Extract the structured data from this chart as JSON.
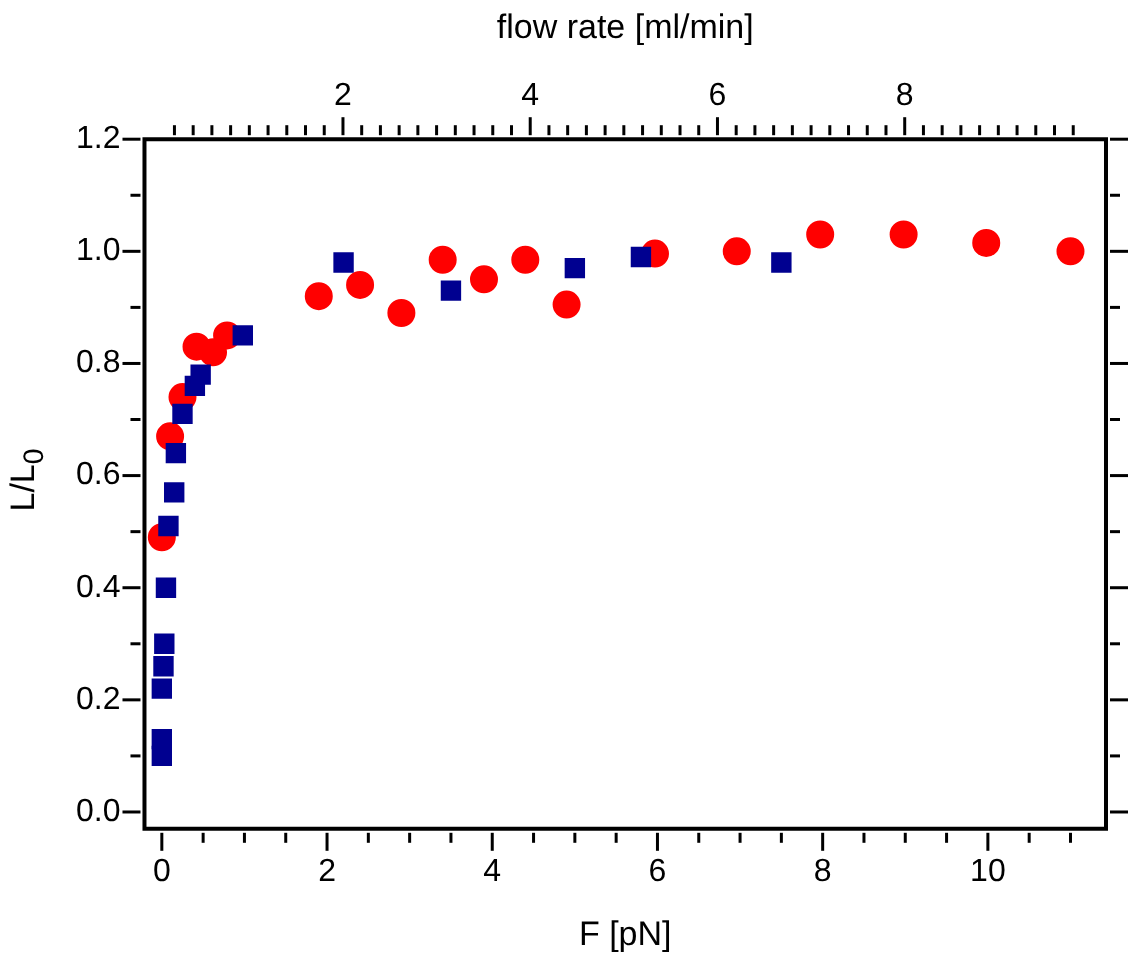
{
  "chart_data": {
    "type": "scatter",
    "xlabel": "F [pN]",
    "ylabel": "L/L$_{0}$",
    "x2label": "flow rate [ml/min]",
    "xlim": [
      -0.21,
      11.43
    ],
    "ylim": [
      -0.03,
      1.2
    ],
    "x2lim": [
      -0.12,
      10.15
    ],
    "xticks": [
      0,
      {
        "value": 0.5,
        "label": null
      },
      {
        "value": 1,
        "label": null
      },
      {
        "value": 1.5,
        "label": null
      },
      2,
      {
        "value": 2.5,
        "label": null
      },
      {
        "value": 3,
        "label": null
      },
      {
        "value": 3.5,
        "label": null
      },
      4,
      {
        "value": 4.5,
        "label": null
      },
      {
        "value": 5,
        "label": null
      },
      {
        "value": 5.5,
        "label": null
      },
      6,
      {
        "value": 6.5,
        "label": null
      },
      {
        "value": 7,
        "label": null
      },
      {
        "value": 7.5,
        "label": null
      },
      8,
      {
        "value": 8.5,
        "label": null
      },
      {
        "value": 9,
        "label": null
      },
      {
        "value": 9.5,
        "label": null
      },
      10,
      {
        "value": 10.5,
        "label": null
      },
      {
        "value": 11,
        "label": null
      }
    ],
    "yticks": [
      {
        "value": 0,
        "label": "0.0"
      },
      {
        "value": 0.1,
        "label": null
      },
      {
        "value": 0.2,
        "label": "0.2"
      },
      {
        "value": 0.3,
        "label": null
      },
      {
        "value": 0.4,
        "label": "0.4"
      },
      {
        "value": 0.5,
        "label": null
      },
      {
        "value": 0.6,
        "label": "0.6"
      },
      {
        "value": 0.7,
        "label": null
      },
      {
        "value": 0.8,
        "label": "0.8"
      },
      {
        "value": 0.9,
        "label": null
      },
      {
        "value": 1,
        "label": "1.0"
      },
      {
        "value": 1.1,
        "label": null
      },
      {
        "value": 1.2,
        "label": "1.2"
      }
    ],
    "x2ticks": [
      {
        "value": 0.2,
        "label": null
      },
      {
        "value": 0.4,
        "label": null
      },
      {
        "value": 0.6,
        "label": null
      },
      {
        "value": 0.8,
        "label": null
      },
      {
        "value": 1,
        "label": null
      },
      {
        "value": 1.2,
        "label": null
      },
      {
        "value": 1.4,
        "label": null
      },
      {
        "value": 1.6,
        "label": null
      },
      {
        "value": 1.8,
        "label": null
      },
      2,
      {
        "value": 2.2,
        "label": null
      },
      {
        "value": 2.4,
        "label": null
      },
      {
        "value": 2.6,
        "label": null
      },
      {
        "value": 2.8,
        "label": null
      },
      {
        "value": 3,
        "label": null
      },
      {
        "value": 3.2,
        "label": null
      },
      {
        "value": 3.4,
        "label": null
      },
      {
        "value": 3.6,
        "label": null
      },
      {
        "value": 3.8,
        "label": null
      },
      4,
      {
        "value": 4.2,
        "label": null
      },
      {
        "value": 4.4,
        "label": null
      },
      {
        "value": 4.6,
        "label": null
      },
      {
        "value": 4.8,
        "label": null
      },
      {
        "value": 5,
        "label": null
      },
      {
        "value": 5.2,
        "label": null
      },
      {
        "value": 5.4,
        "label": null
      },
      {
        "value": 5.6,
        "label": null
      },
      {
        "value": 5.8,
        "label": null
      },
      6,
      {
        "value": 6.2,
        "label": null
      },
      {
        "value": 6.4,
        "label": null
      },
      {
        "value": 6.6,
        "label": null
      },
      {
        "value": 6.8,
        "label": null
      },
      {
        "value": 7,
        "label": null
      },
      {
        "value": 7.2,
        "label": null
      },
      {
        "value": 7.4,
        "label": null
      },
      {
        "value": 7.6,
        "label": null
      },
      {
        "value": 7.8,
        "label": null
      },
      8,
      {
        "value": 8.2,
        "label": null
      },
      {
        "value": 8.4,
        "label": null
      },
      {
        "value": 8.6,
        "label": null
      },
      {
        "value": 8.8,
        "label": null
      },
      {
        "value": 9,
        "label": null
      },
      {
        "value": 9.2,
        "label": null
      },
      {
        "value": 9.4,
        "label": null
      },
      {
        "value": 9.6,
        "label": null
      },
      {
        "value": 9.8,
        "label": null
      }
    ],
    "grid": false,
    "legend": false,
    "series": [
      {
        "color": "#000090",
        "marker": "square",
        "x": [
          0.0,
          0.0,
          0.0,
          0.02,
          0.03,
          0.05,
          0.08,
          0.15,
          0.17,
          0.25,
          0.4,
          0.47,
          0.98,
          2.2,
          3.5,
          5.0,
          5.8,
          7.5
        ],
        "values": [
          0.1,
          0.13,
          0.22,
          0.26,
          0.3,
          0.4,
          0.51,
          0.57,
          0.64,
          0.71,
          0.76,
          0.78,
          0.85,
          0.98,
          0.93,
          0.97,
          0.99,
          0.98
        ]
      },
      {
        "color": "#ff0000",
        "marker": "circle",
        "x": [
          0.0,
          0.1,
          0.25,
          0.42,
          0.62,
          0.79,
          1.9,
          2.4,
          2.9,
          3.4,
          3.9,
          4.4,
          4.9,
          5.97,
          6.96,
          7.97,
          8.98,
          9.98,
          11.0
        ],
        "values": [
          0.49,
          0.67,
          0.74,
          0.83,
          0.82,
          0.85,
          0.92,
          0.94,
          0.89,
          0.985,
          0.95,
          0.985,
          0.905,
          0.996,
          1.0,
          1.03,
          1.03,
          1.015,
          1.0
        ]
      }
    ]
  }
}
